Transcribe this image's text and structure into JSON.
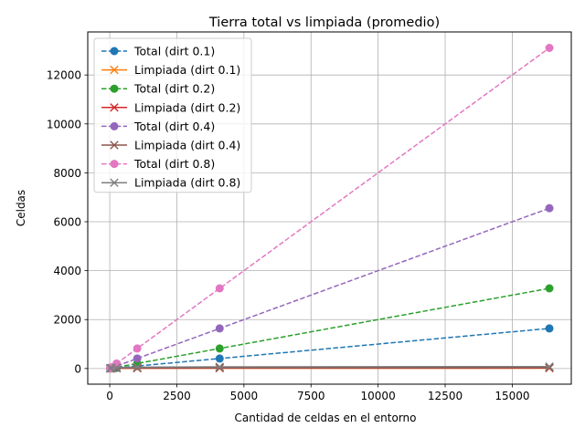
{
  "chart_data": {
    "type": "line",
    "title": "Tierra total vs limpiada (promedio)",
    "xlabel": "Cantidad de celdas en el entorno",
    "ylabel": "Celdas",
    "xlim": [
      -820,
      17200
    ],
    "ylim": [
      -640,
      13760
    ],
    "xticks": [
      0,
      2500,
      5000,
      7500,
      10000,
      12500,
      15000
    ],
    "xtick_labels": [
      "0",
      "2500",
      "5000",
      "7500",
      "10000",
      "12500",
      "15000"
    ],
    "yticks": [
      0,
      2000,
      4000,
      6000,
      8000,
      10000,
      12000
    ],
    "ytick_labels": [
      "0",
      "2000",
      "4000",
      "6000",
      "8000",
      "10000",
      "12000"
    ],
    "grid": true,
    "legend_position": "top-left",
    "x": [
      16,
      64,
      256,
      1024,
      4096,
      16384
    ],
    "series": [
      {
        "name": "Total (dirt 0.1)",
        "color": "#1f77b4",
        "style": "dashed",
        "marker": "circle",
        "values": [
          2,
          6,
          25,
          102,
          409,
          1638
        ]
      },
      {
        "name": "Limpiada (dirt 0.1)",
        "color": "#ff7f0e",
        "style": "solid",
        "marker": "x",
        "values": [
          2,
          6,
          10,
          12,
          14,
          15
        ]
      },
      {
        "name": "Total (dirt 0.2)",
        "color": "#2ca02c",
        "style": "dashed",
        "marker": "circle",
        "values": [
          3,
          13,
          51,
          205,
          819,
          3277
        ]
      },
      {
        "name": "Limpiada (dirt 0.2)",
        "color": "#d62728",
        "style": "solid",
        "marker": "x",
        "values": [
          3,
          8,
          12,
          15,
          18,
          20
        ]
      },
      {
        "name": "Total (dirt 0.4)",
        "color": "#9467bd",
        "style": "dashed",
        "marker": "circle",
        "values": [
          6,
          26,
          102,
          410,
          1638,
          6554
        ]
      },
      {
        "name": "Limpiada (dirt 0.4)",
        "color": "#8c564b",
        "style": "solid",
        "marker": "x",
        "values": [
          6,
          14,
          20,
          25,
          30,
          35
        ]
      },
      {
        "name": "Total (dirt 0.8)",
        "color": "#e377c2",
        "style": "dashed",
        "marker": "circle",
        "values": [
          13,
          51,
          205,
          819,
          3277,
          13107
        ]
      },
      {
        "name": "Limpiada (dirt 0.8)",
        "color": "#7f7f7f",
        "style": "solid",
        "marker": "x",
        "values": [
          13,
          25,
          40,
          55,
          70,
          80
        ]
      }
    ]
  }
}
